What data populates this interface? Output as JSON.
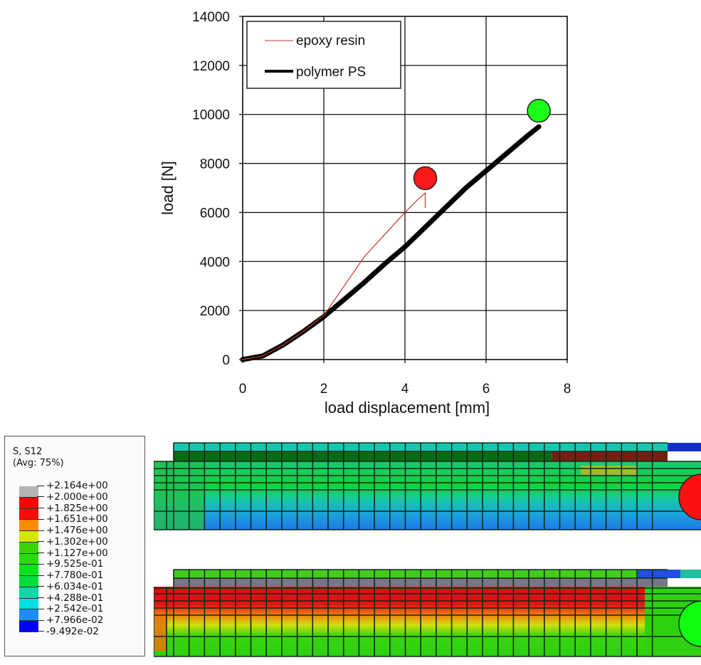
{
  "chart_data": {
    "type": "line",
    "title": "",
    "xlabel": "load displacement [mm]",
    "ylabel": "load [N]",
    "xlim": [
      0,
      8
    ],
    "ylim": [
      0,
      14000
    ],
    "xticks": [
      "0",
      "2",
      "4",
      "6",
      "8"
    ],
    "yticks": [
      "0",
      "2000",
      "4000",
      "6000",
      "8000",
      "10000",
      "12000",
      "14000"
    ],
    "grid": true,
    "legend_position": "upper left",
    "series": [
      {
        "name": "epoxy resin",
        "color": "#c0392b",
        "x": [
          0,
          0.5,
          1.0,
          1.5,
          2.0,
          2.5,
          3.0,
          3.5,
          4.0,
          4.3,
          4.5,
          4.5
        ],
        "y": [
          0,
          150,
          600,
          1150,
          1800,
          3000,
          4200,
          5100,
          6000,
          6500,
          6800,
          6200
        ]
      },
      {
        "name": "polymer PS",
        "color": "#000000",
        "x": [
          0,
          0.5,
          1.0,
          1.5,
          2.0,
          2.5,
          3.0,
          3.5,
          4.0,
          4.5,
          5.0,
          5.5,
          6.0,
          6.5,
          7.0,
          7.3
        ],
        "y": [
          0,
          150,
          600,
          1150,
          1750,
          2450,
          3150,
          3900,
          4600,
          5400,
          6200,
          7000,
          7700,
          8400,
          9100,
          9500
        ]
      }
    ],
    "annotations": [
      {
        "type": "marker-circle",
        "color": "#ff1a1a",
        "x": 4.5,
        "y": 7400,
        "label": "epoxy resin failure"
      },
      {
        "type": "marker-circle",
        "color": "#1aff1a",
        "x": 7.3,
        "y": 10150,
        "label": "polymer PS failure"
      }
    ]
  },
  "legend": {
    "items": [
      {
        "label": "epoxy resin",
        "color": "#c0392b"
      },
      {
        "label": "polymer PS",
        "color": "#000000"
      }
    ]
  },
  "contour_legend": {
    "variable": "S, S12",
    "averaging": "(Avg: 75%)",
    "levels": [
      "+2.164e+00",
      "+2.000e+00",
      "+1.825e+00",
      "+1.651e+00",
      "+1.476e+00",
      "+1.302e+00",
      "+1.127e+00",
      "+9.525e-01",
      "+7.780e-01",
      "+6.034e-01",
      "+4.288e-01",
      "+2.542e-01",
      "+7.966e-02",
      "-9.492e-02"
    ],
    "colors": [
      "#b4b4b4",
      "#ff0000",
      "#ff0a0a",
      "#ff8c00",
      "#d4e600",
      "#3ad400",
      "#22e000",
      "#00e61a",
      "#00dc3c",
      "#12d6a8",
      "#00e0e0",
      "#1e8cff",
      "#0000ff",
      "#0000c8"
    ]
  },
  "fe_panels": [
    {
      "name": "epoxy-resin-model",
      "indenter_color": "#ff1010"
    },
    {
      "name": "polymer-ps-model",
      "indenter_color": "#10ff10"
    }
  ]
}
